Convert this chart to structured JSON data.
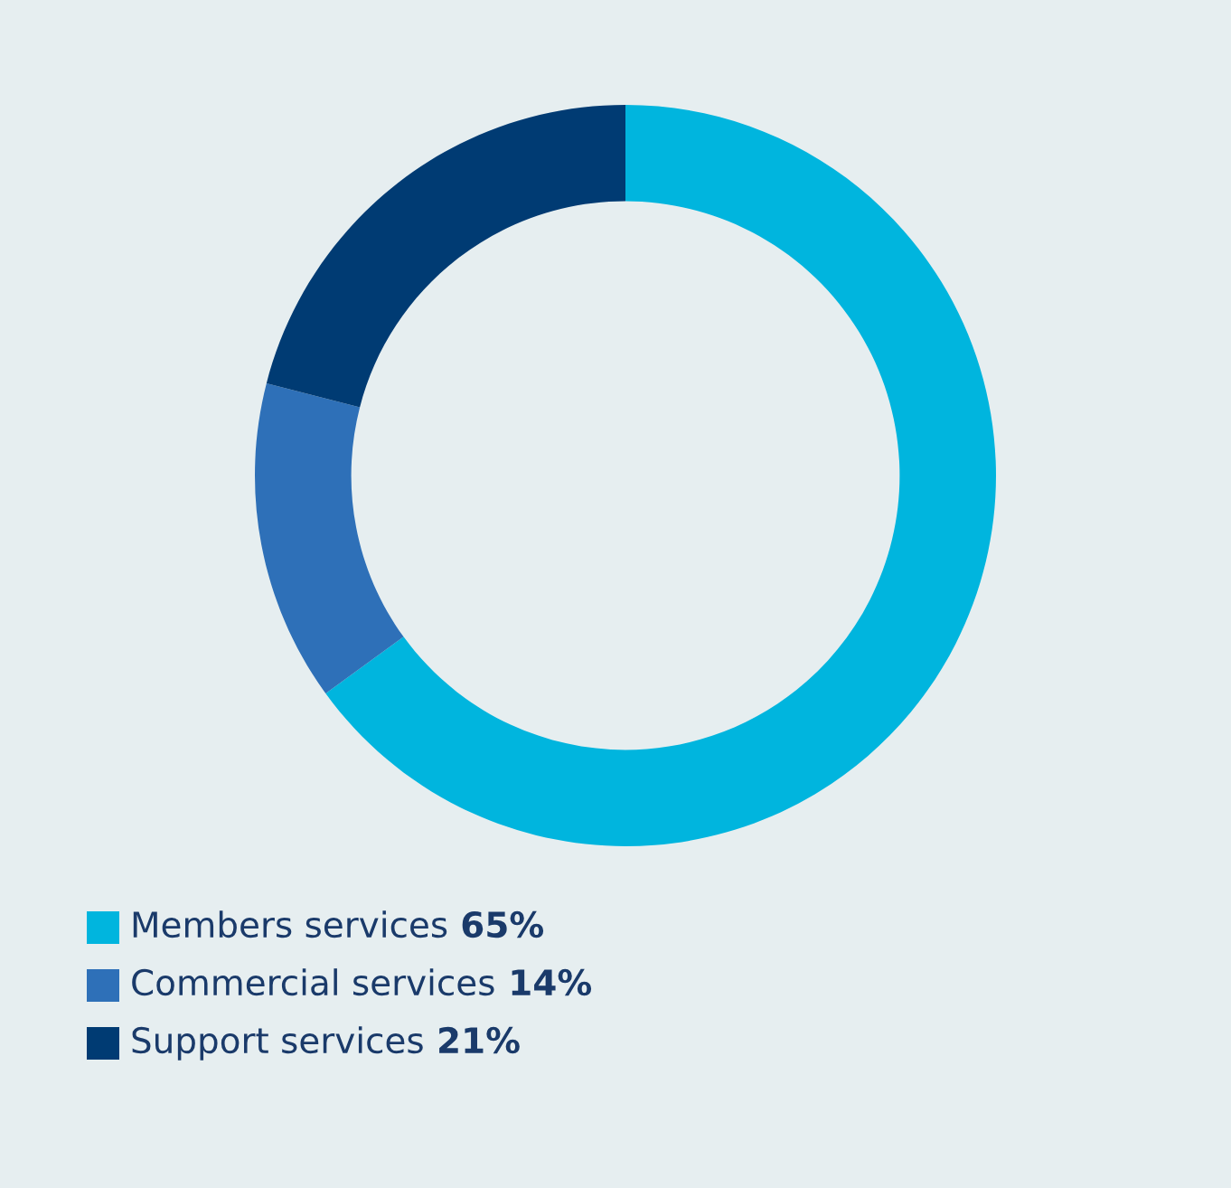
{
  "chart_data": {
    "type": "donut",
    "categories": [
      "Members services",
      "Commercial services",
      "Support services"
    ],
    "values": [
      65,
      14,
      21
    ],
    "colors": [
      "#00b5de",
      "#2e70b8",
      "#003b73"
    ],
    "value_labels": [
      "65%",
      "14%",
      "21%"
    ],
    "legend": "bottom left"
  }
}
